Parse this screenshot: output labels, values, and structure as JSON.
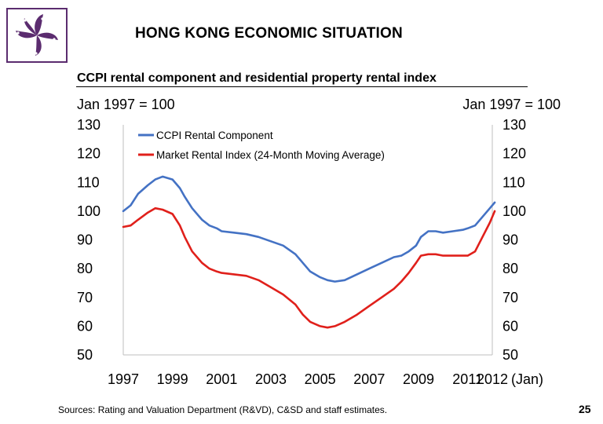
{
  "slide": {
    "title": "HONG KONG ECONOMIC SITUATION",
    "subtitle": "CCPI rental component and residential property rental index",
    "source": "Sources: Rating and Valuation Department (R&VD), C&SD and staff estimates.",
    "page_number": "25"
  },
  "colors": {
    "ccpi": "#4472C4",
    "market": "#E0201B",
    "logo": "#5B2C6F",
    "gridline": "#D9D9D9"
  },
  "icons": {
    "logo": "bauhinia-logo-icon"
  },
  "chart_data": {
    "type": "line",
    "xlabel": "(Jan)",
    "y_left_label": "Jan 1997 = 100",
    "y_right_label": "Jan 1997 = 100",
    "ylim": [
      50,
      130
    ],
    "yticks": [
      130,
      120,
      110,
      100,
      90,
      80,
      70,
      60,
      50
    ],
    "xlim": [
      1997,
      2012
    ],
    "xticks": [
      1997,
      1999,
      2001,
      2003,
      2005,
      2007,
      2009,
      2011,
      2012
    ],
    "legend_position": "top-left",
    "series": [
      {
        "name": "CCPI Rental Component",
        "color": "#4472C4",
        "x": [
          1997,
          1997.3,
          1997.6,
          1998.0,
          1998.3,
          1998.6,
          1999.0,
          1999.3,
          1999.5,
          1999.8,
          2000.2,
          2000.5,
          2000.8,
          2001.0,
          2001.5,
          2002.0,
          2002.5,
          2003.0,
          2003.5,
          2004.0,
          2004.3,
          2004.6,
          2005.0,
          2005.3,
          2005.6,
          2006.0,
          2006.5,
          2007.0,
          2007.5,
          2008.0,
          2008.3,
          2008.6,
          2008.9,
          2009.1,
          2009.4,
          2009.7,
          2010.0,
          2010.4,
          2010.8,
          2011.0,
          2011.3,
          2011.6,
          2011.9,
          2012.1
        ],
        "values": [
          100,
          102,
          106,
          109,
          111,
          112,
          111,
          108,
          105,
          101,
          97,
          95,
          94,
          93,
          92.5,
          92,
          91,
          89.5,
          88,
          85,
          82,
          79,
          77,
          76,
          75.5,
          76,
          78,
          80,
          82,
          84,
          84.5,
          86,
          88,
          91,
          93,
          93,
          92.5,
          93,
          93.5,
          94,
          95,
          98,
          101,
          103
        ]
      },
      {
        "name": "Market Rental Index (24-Month Moving Average)",
        "color": "#E0201B",
        "x": [
          1997,
          1997.3,
          1997.6,
          1998.0,
          1998.3,
          1998.6,
          1999.0,
          1999.3,
          1999.5,
          1999.8,
          2000.2,
          2000.5,
          2000.8,
          2001.0,
          2001.5,
          2002.0,
          2002.5,
          2003.0,
          2003.5,
          2004.0,
          2004.3,
          2004.6,
          2005.0,
          2005.3,
          2005.6,
          2006.0,
          2006.5,
          2007.0,
          2007.5,
          2008.0,
          2008.3,
          2008.6,
          2008.9,
          2009.1,
          2009.4,
          2009.7,
          2010.0,
          2010.4,
          2010.8,
          2011.0,
          2011.3,
          2011.6,
          2011.9,
          2012.1
        ],
        "values": [
          94.5,
          95,
          97,
          99.5,
          101,
          100.5,
          99,
          95,
          91,
          86,
          82,
          80,
          79,
          78.5,
          78,
          77.5,
          76,
          73.5,
          71,
          67.5,
          64,
          61.5,
          60,
          59.5,
          60,
          61.5,
          64,
          67,
          70,
          73,
          75.5,
          78.5,
          82,
          84.5,
          85,
          85,
          84.5,
          84.5,
          84.5,
          84.5,
          86,
          91,
          96,
          100
        ]
      }
    ]
  }
}
